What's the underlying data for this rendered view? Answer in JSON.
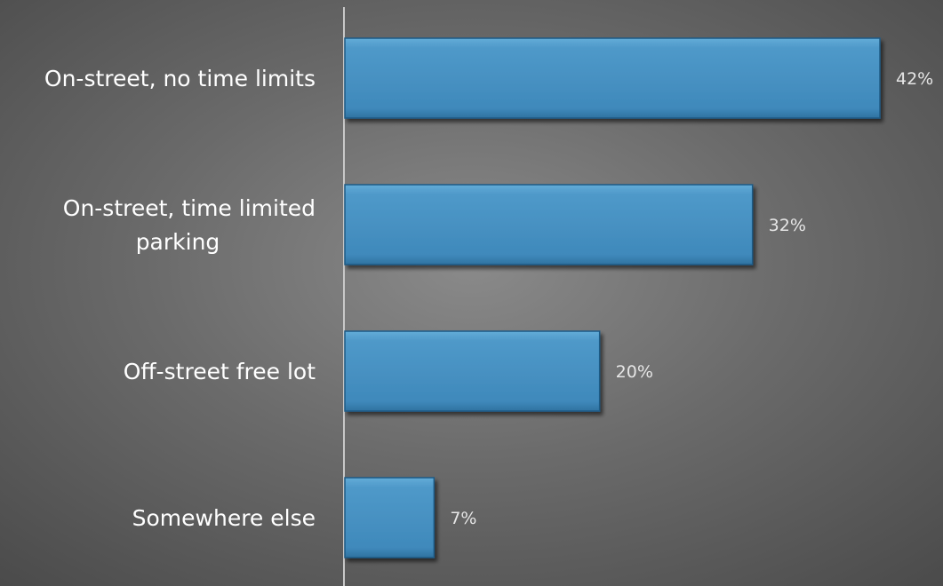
{
  "chart_data": {
    "type": "bar",
    "orientation": "horizontal",
    "categories": [
      "On-street, no time limits",
      "On-street, time limited parking",
      "Off-street free lot",
      "Somewhere else"
    ],
    "category_label_lines": [
      [
        "On-street, no time limits"
      ],
      [
        "On-street, time limited",
        "parking"
      ],
      [
        "Off-street free lot"
      ],
      [
        "Somewhere else"
      ]
    ],
    "values": [
      42,
      32,
      20,
      7
    ],
    "data_labels": [
      "42%",
      "32%",
      "20%",
      "7%"
    ],
    "unit": "%",
    "xlim": [
      0,
      42
    ],
    "grid": false,
    "legend": "none",
    "bar_color": "#4a90c0",
    "background_color": "#6e6e6e",
    "axis_color": "#c8c8c8"
  }
}
